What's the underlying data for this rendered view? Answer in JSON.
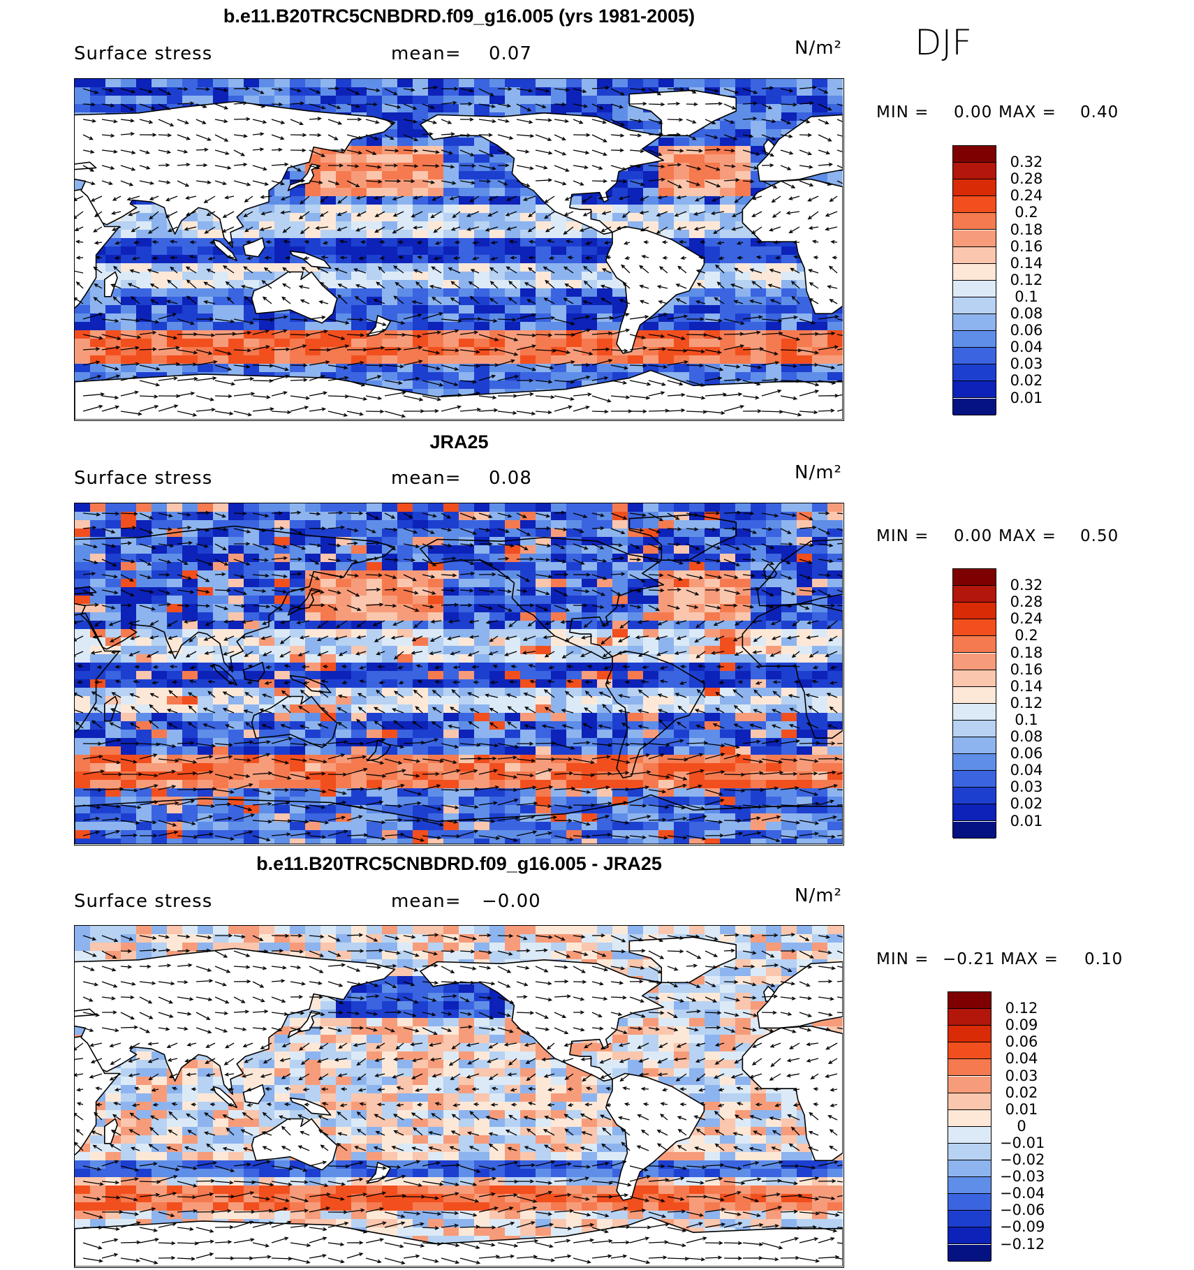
{
  "season": "DJF",
  "panels": [
    {
      "title": "b.e11.B20TRC5CNBDRD.f09_g16.005 (yrs 1981-2005)",
      "variable": "Surface stress",
      "mean_label": "mean=",
      "mean_value": "0.07",
      "units": "N/m²",
      "min_label": "MIN =",
      "min_value": "0.00",
      "max_label": "MAX =",
      "max_value": "0.40",
      "colorbar_labels": [
        "0.32",
        "0.28",
        "0.24",
        "0.2",
        "0.18",
        "0.16",
        "0.14",
        "0.12",
        "0.1",
        "0.08",
        "0.06",
        "0.04",
        "0.03",
        "0.02",
        "0.01"
      ]
    },
    {
      "title": "JRA25",
      "variable": "Surface stress",
      "mean_label": "mean=",
      "mean_value": "0.08",
      "units": "N/m²",
      "min_label": "MIN =",
      "min_value": "0.00",
      "max_label": "MAX =",
      "max_value": "0.50",
      "colorbar_labels": [
        "0.32",
        "0.28",
        "0.24",
        "0.2",
        "0.18",
        "0.16",
        "0.14",
        "0.12",
        "0.1",
        "0.08",
        "0.06",
        "0.04",
        "0.03",
        "0.02",
        "0.01"
      ]
    },
    {
      "title": "b.e11.B20TRC5CNBDRD.f09_g16.005 - JRA25",
      "variable": "Surface stress",
      "mean_label": "mean=",
      "mean_value": "−0.00",
      "units": "N/m²",
      "min_label": "MIN =",
      "min_value": "−0.21",
      "max_label": "MAX =",
      "max_value": "0.10",
      "colorbar_labels": [
        "0.12",
        "0.09",
        "0.06",
        "0.04",
        "0.03",
        "0.02",
        "0.01",
        "0",
        "−0.01",
        "−0.02",
        "−0.03",
        "−0.04",
        "−0.06",
        "−0.09",
        "−0.12"
      ]
    }
  ],
  "colors": {
    "scale_abs": [
      "#7f0000",
      "#b3160a",
      "#d92b05",
      "#f24f1e",
      "#f57a4f",
      "#f79c7a",
      "#fac6ad",
      "#fde8d8",
      "#dceaf7",
      "#b7d2f2",
      "#8db4ee",
      "#5f8ee8",
      "#3a64e0",
      "#1d3fcf",
      "#0c22b8",
      "#041282"
    ],
    "scale_diff": [
      "#7f0000",
      "#b3160a",
      "#d92b05",
      "#f24f1e",
      "#f57a4f",
      "#f79c7a",
      "#fac6ad",
      "#fde8d8",
      "#dceaf7",
      "#b7d2f2",
      "#8db4ee",
      "#5f8ee8",
      "#3a64e0",
      "#1d3fcf",
      "#0c22b8",
      "#041282"
    ],
    "land": "#ffffff",
    "coast": "#000000"
  }
}
